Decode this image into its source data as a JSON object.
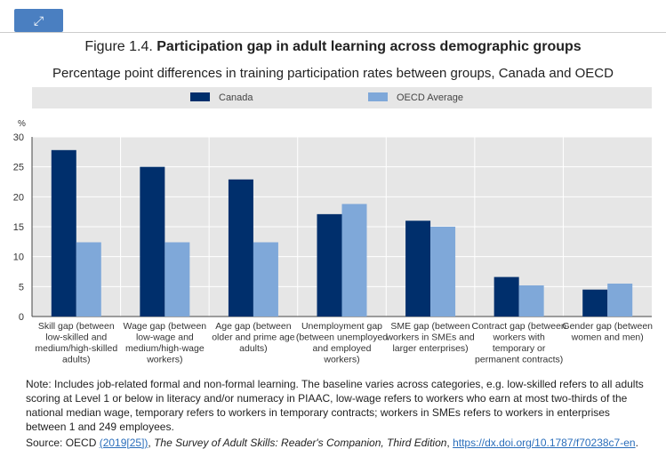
{
  "expand_icon": "expand-icon",
  "title": {
    "prefix": "Figure 1.4. ",
    "main": "Participation gap in adult learning across demographic groups"
  },
  "subtitle": "Percentage point differences in training participation rates between groups, Canada and OECD",
  "chart_data": {
    "type": "bar",
    "ylabel": "%",
    "ylim": [
      0,
      30
    ],
    "yticks": [
      0,
      5,
      10,
      15,
      20,
      25,
      30
    ],
    "grid": true,
    "legend_placement": "top",
    "categories": [
      [
        "Skill gap (between",
        "low-skilled and",
        "medium/high-skilled",
        "adults)"
      ],
      [
        "Wage gap (between",
        "low-wage and",
        "medium/high-wage",
        "workers)"
      ],
      [
        "Age gap (between",
        "older and prime age",
        "adults)"
      ],
      [
        "Unemployment gap",
        "(between unemployed",
        "and employed",
        "workers)"
      ],
      [
        "SME gap (between",
        "workers in SMEs and",
        "larger enterprises)"
      ],
      [
        "Contract gap (between",
        "workers with",
        "temporary or",
        "permanent contracts)"
      ],
      [
        "Gender gap (between",
        "women and men)"
      ]
    ],
    "series": [
      {
        "name": "Canada",
        "color": "#002f6c",
        "values": [
          27.8,
          25.0,
          22.9,
          17.1,
          16.0,
          6.6,
          4.5
        ]
      },
      {
        "name": "OECD Average",
        "color": "#7fa8d9",
        "values": [
          12.4,
          12.4,
          12.4,
          18.8,
          15.0,
          5.2,
          5.5
        ]
      }
    ]
  },
  "note": "Note: Includes job-related formal and non-formal learning. The baseline varies across categories, e.g. low-skilled refers to all adults scoring at Level 1 or below in literacy and/or numeracy in PIAAC, low-wage refers to workers who earn at most two-thirds of the national median wage, temporary refers to workers in temporary contracts; workers in SMEs refers to workers in enterprises between 1 and 249 employees.",
  "source": {
    "prefix": "Source: OECD ",
    "ref": "(2019[25])",
    "sep": ", ",
    "work": "The Survey of Adult Skills: Reader's Companion, Third Edition",
    "comma": ", ",
    "link": "https://dx.doi.org/10.1787/f70238c7-en",
    "end": "."
  }
}
